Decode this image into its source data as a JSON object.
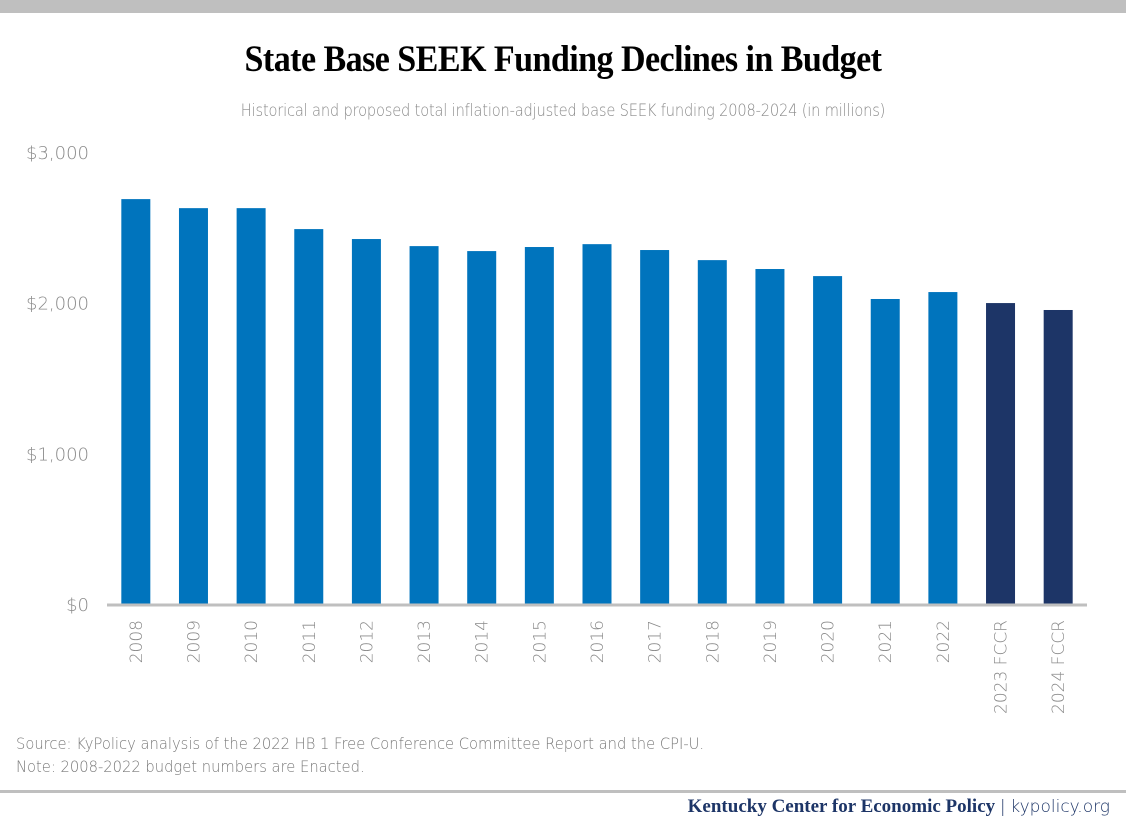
{
  "header": {
    "title": "State Base SEEK Funding Declines in Budget",
    "subtitle": "Historical and proposed total inflation-adjusted base SEEK funding 2008-2024 (in millions)"
  },
  "notes": {
    "source": "Source: KyPolicy analysis of the 2022 HB 1 Free Conference Committee Report and the CPI-U.",
    "note": "Note: 2008-2022 budget numbers are Enacted."
  },
  "footer": {
    "org": "Kentucky Center for Economic Policy",
    "separator": "|",
    "site": "kypolicy.org"
  },
  "colors": {
    "enacted": "#0074bd",
    "proposed": "#1d3567",
    "axis": "#bfbfbf",
    "rule": "#bfbfbf"
  },
  "chart_data": {
    "type": "bar",
    "title": "State Base SEEK Funding Declines in Budget",
    "subtitle": "Historical and proposed total inflation-adjusted base SEEK funding 2008-2024 (in millions)",
    "xlabel": "",
    "ylabel": "",
    "ylim": [
      0,
      3000
    ],
    "yticks": [
      0,
      1000,
      2000,
      3000
    ],
    "ytick_labels": [
      "$0",
      "$1,000",
      "$2,000",
      "$3,000"
    ],
    "grid": false,
    "legend": "none",
    "categories": [
      "2008",
      "2009",
      "2010",
      "2011",
      "2012",
      "2013",
      "2014",
      "2015",
      "2016",
      "2017",
      "2018",
      "2019",
      "2020",
      "2021",
      "2022",
      "2023 FCCR",
      "2024 FCCR"
    ],
    "values": [
      2694,
      2634,
      2634,
      2495,
      2429,
      2382,
      2349,
      2376,
      2395,
      2356,
      2289,
      2230,
      2183,
      2031,
      2077,
      2004,
      1958
    ],
    "bar_groups": [
      "enacted",
      "enacted",
      "enacted",
      "enacted",
      "enacted",
      "enacted",
      "enacted",
      "enacted",
      "enacted",
      "enacted",
      "enacted",
      "enacted",
      "enacted",
      "enacted",
      "enacted",
      "proposed",
      "proposed"
    ],
    "units": "millions of dollars (inflation-adjusted)"
  }
}
